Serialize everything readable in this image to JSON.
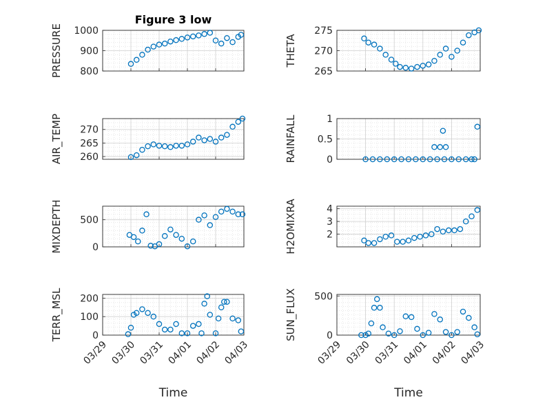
{
  "chart_data": [
    {
      "type": "scatter",
      "title": "Figure 3 low",
      "ylabel": "PRESSURE",
      "xlabel": "",
      "xlim": [
        0,
        5
      ],
      "ylim": [
        800,
        1000
      ],
      "yticks": [
        800,
        900,
        1000
      ],
      "xticks": [],
      "x": [
        1.0,
        1.2,
        1.4,
        1.6,
        1.8,
        2.0,
        2.2,
        2.4,
        2.6,
        2.8,
        3.0,
        3.2,
        3.4,
        3.6,
        3.8,
        4.0,
        4.2,
        4.4,
        4.6,
        4.8,
        4.9
      ],
      "y": [
        835,
        855,
        880,
        905,
        920,
        930,
        935,
        945,
        952,
        958,
        965,
        970,
        975,
        982,
        988,
        950,
        935,
        962,
        942,
        968,
        978
      ]
    },
    {
      "type": "scatter",
      "title": "",
      "ylabel": "THETA",
      "xlabel": "",
      "xlim": [
        0,
        5
      ],
      "ylim": [
        265,
        275
      ],
      "yticks": [
        265,
        270,
        275
      ],
      "xticks": [],
      "x": [
        0.95,
        1.1,
        1.3,
        1.5,
        1.7,
        1.9,
        2.05,
        2.2,
        2.4,
        2.6,
        2.8,
        3.0,
        3.2,
        3.4,
        3.6,
        3.8,
        4.0,
        4.2,
        4.4,
        4.6,
        4.8,
        4.95
      ],
      "y": [
        273,
        272,
        271.5,
        270.5,
        269,
        267.8,
        266.8,
        266,
        265.8,
        265.6,
        266.0,
        266.3,
        266.6,
        267.5,
        269,
        270.5,
        268.5,
        270,
        272,
        273.8,
        274.5,
        275
      ]
    },
    {
      "type": "scatter",
      "title": "",
      "ylabel": "AIR_TEMP",
      "xlabel": "",
      "xlim": [
        0,
        5
      ],
      "ylim": [
        259,
        274
      ],
      "yticks": [
        260,
        265,
        270
      ],
      "xticks": [],
      "x": [
        1.0,
        1.2,
        1.4,
        1.6,
        1.8,
        2.0,
        2.2,
        2.4,
        2.6,
        2.8,
        3.0,
        3.2,
        3.4,
        3.6,
        3.8,
        4.0,
        4.2,
        4.4,
        4.6,
        4.8,
        4.95
      ],
      "y": [
        259.8,
        260.5,
        262.5,
        263.8,
        264.5,
        264.0,
        263.8,
        263.5,
        264,
        264,
        264.5,
        265.5,
        267,
        266,
        266.5,
        265.5,
        267,
        268,
        271,
        272.8,
        274
      ]
    },
    {
      "type": "scatter",
      "title": "",
      "ylabel": "RAINFALL",
      "xlabel": "",
      "xlim": [
        0,
        5
      ],
      "ylim": [
        0,
        1
      ],
      "yticks": [
        0,
        0.5,
        1
      ],
      "xticks": [],
      "x": [
        1.0,
        1.25,
        1.5,
        1.75,
        2.0,
        2.25,
        2.5,
        2.75,
        3.0,
        3.25,
        3.5,
        3.75,
        3.4,
        3.6,
        3.7,
        3.8,
        4.0,
        4.25,
        4.5,
        4.7,
        4.8,
        4.9
      ],
      "y": [
        0,
        0,
        0,
        0,
        0,
        0,
        0,
        0,
        0,
        0,
        0,
        0,
        0.3,
        0.3,
        0.7,
        0.3,
        0,
        0,
        0,
        0,
        0,
        0.8
      ]
    },
    {
      "type": "scatter",
      "title": "",
      "ylabel": "MIXDEPTH",
      "xlabel": "",
      "xlim": [
        0,
        5
      ],
      "ylim": [
        0,
        750
      ],
      "yticks": [
        0,
        500
      ],
      "xticks": [],
      "x": [
        0.95,
        1.1,
        1.25,
        1.4,
        1.55,
        1.7,
        1.85,
        2.0,
        2.2,
        2.4,
        2.6,
        2.8,
        3.0,
        3.2,
        3.4,
        3.6,
        3.8,
        4.0,
        4.2,
        4.4,
        4.6,
        4.8,
        4.95
      ],
      "y": [
        220,
        180,
        100,
        300,
        600,
        20,
        10,
        50,
        200,
        320,
        220,
        150,
        10,
        100,
        500,
        580,
        400,
        550,
        650,
        700,
        650,
        600,
        600
      ]
    },
    {
      "type": "scatter",
      "title": "",
      "ylabel": "H2OMIXRA",
      "xlabel": "",
      "xlim": [
        0,
        5
      ],
      "ylim": [
        1,
        4.2
      ],
      "yticks": [
        2,
        3,
        4
      ],
      "xticks": [],
      "x": [
        0.95,
        1.1,
        1.3,
        1.5,
        1.7,
        1.9,
        2.1,
        2.3,
        2.5,
        2.7,
        2.9,
        3.1,
        3.3,
        3.5,
        3.7,
        3.9,
        4.1,
        4.3,
        4.5,
        4.7,
        4.9
      ],
      "y": [
        1.5,
        1.3,
        1.3,
        1.6,
        1.8,
        1.9,
        1.4,
        1.4,
        1.5,
        1.7,
        1.8,
        1.9,
        2.0,
        2.4,
        2.2,
        2.3,
        2.3,
        2.4,
        3.0,
        3.4,
        3.9
      ]
    },
    {
      "type": "scatter",
      "title": "",
      "ylabel": "TERR_MSL",
      "xlabel": "Time",
      "xlim": [
        0,
        5
      ],
      "ylim": [
        0,
        220
      ],
      "yticks": [
        0,
        100,
        200
      ],
      "xticks": [
        "03/29",
        "03/30",
        "03/31",
        "04/01",
        "04/02",
        "04/03"
      ],
      "x": [
        0.9,
        1.0,
        1.1,
        1.2,
        1.4,
        1.6,
        1.8,
        2.0,
        2.2,
        2.4,
        2.6,
        2.8,
        3.0,
        3.2,
        3.4,
        3.5,
        3.6,
        3.7,
        3.8,
        4.0,
        4.1,
        4.2,
        4.3,
        4.4,
        4.6,
        4.8,
        4.9
      ],
      "y": [
        5,
        40,
        110,
        120,
        140,
        120,
        100,
        60,
        30,
        30,
        60,
        10,
        10,
        50,
        60,
        10,
        170,
        210,
        110,
        10,
        90,
        150,
        180,
        180,
        90,
        80,
        20
      ]
    },
    {
      "type": "scatter",
      "title": "",
      "ylabel": "SUN_FLUX",
      "xlabel": "Time",
      "xlim": [
        0,
        5
      ],
      "ylim": [
        0,
        520
      ],
      "yticks": [
        0,
        500
      ],
      "xticks": [
        "03/29",
        "03/30",
        "03/31",
        "04/01",
        "04/02",
        "04/03"
      ],
      "x": [
        0.85,
        1.0,
        1.1,
        1.2,
        1.3,
        1.4,
        1.5,
        1.6,
        1.8,
        2.0,
        2.2,
        2.4,
        2.6,
        2.8,
        3.0,
        3.2,
        3.4,
        3.6,
        3.8,
        4.0,
        4.2,
        4.4,
        4.6,
        4.8,
        4.9
      ],
      "y": [
        0,
        0,
        20,
        150,
        350,
        460,
        350,
        100,
        20,
        0,
        50,
        240,
        230,
        80,
        0,
        30,
        270,
        200,
        40,
        0,
        40,
        300,
        220,
        100,
        10
      ]
    }
  ]
}
